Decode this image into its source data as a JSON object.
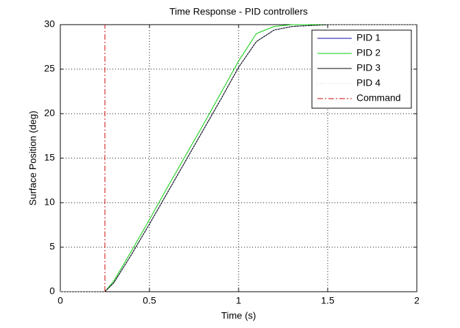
{
  "chart_data": {
    "type": "line",
    "title": "Time Response - PID controllers",
    "x_label": "Time (s)",
    "y_label": "Surface Position (deg)",
    "xlim": [
      0,
      2
    ],
    "xticks": [
      0,
      0.5,
      1,
      1.5,
      2
    ],
    "ylim": [
      0,
      30
    ],
    "yticks": [
      0,
      5,
      10,
      15,
      20,
      25,
      30
    ],
    "grid": true,
    "legend": "upper-right",
    "series": [
      {
        "name": "PID 1",
        "color": "#0000aa",
        "style": "solid",
        "x": [
          0,
          0.25,
          0.3,
          0.4,
          0.5,
          0.6,
          0.7,
          0.8,
          0.9,
          1.0,
          1.1,
          1.2,
          1.3,
          1.4,
          1.5,
          2.0
        ],
        "values": [
          0,
          0,
          1,
          4.2,
          7.6,
          11.1,
          14.6,
          18.1,
          21.6,
          25.2,
          28.1,
          29.4,
          29.8,
          29.9,
          30,
          30
        ]
      },
      {
        "name": "PID 2",
        "color": "#00cc00",
        "style": "solid",
        "x": [
          0,
          0.25,
          0.3,
          0.4,
          0.5,
          0.6,
          0.7,
          0.8,
          0.9,
          1.0,
          1.1,
          1.2,
          1.3,
          1.4,
          1.5,
          2.0
        ],
        "values": [
          0,
          0,
          1.2,
          4.6,
          8.1,
          11.7,
          15.2,
          18.7,
          22.3,
          25.9,
          29.0,
          29.8,
          30,
          30,
          30,
          30
        ]
      },
      {
        "name": "PID 3",
        "color": "#000000",
        "style": "solid",
        "x": [
          0,
          0.25,
          0.3,
          0.4,
          0.5,
          0.6,
          0.7,
          0.8,
          0.9,
          1.0,
          1.1,
          1.2,
          1.3,
          1.4,
          1.5,
          2.0
        ],
        "values": [
          0,
          0,
          1,
          4.2,
          7.6,
          11.1,
          14.6,
          18.1,
          21.6,
          25.2,
          28.1,
          29.4,
          29.8,
          29.9,
          30,
          30
        ]
      },
      {
        "name": "PID 4",
        "color": "#c8c8c8",
        "style": "dotted",
        "x": [
          0,
          0.25,
          0.3,
          0.4,
          0.5,
          0.6,
          0.7,
          0.8,
          0.9,
          1.0,
          1.1,
          1.2,
          1.3,
          1.4,
          1.5,
          2.0
        ],
        "values": [
          0,
          0,
          1,
          4.2,
          7.6,
          11.1,
          14.6,
          18.1,
          21.6,
          25.2,
          28.1,
          29.4,
          29.8,
          29.9,
          30,
          30
        ]
      },
      {
        "name": "Command",
        "color": "#cc0000",
        "style": "dashdot",
        "x": [
          0.25,
          0.25
        ],
        "values": [
          0,
          30
        ]
      }
    ]
  }
}
